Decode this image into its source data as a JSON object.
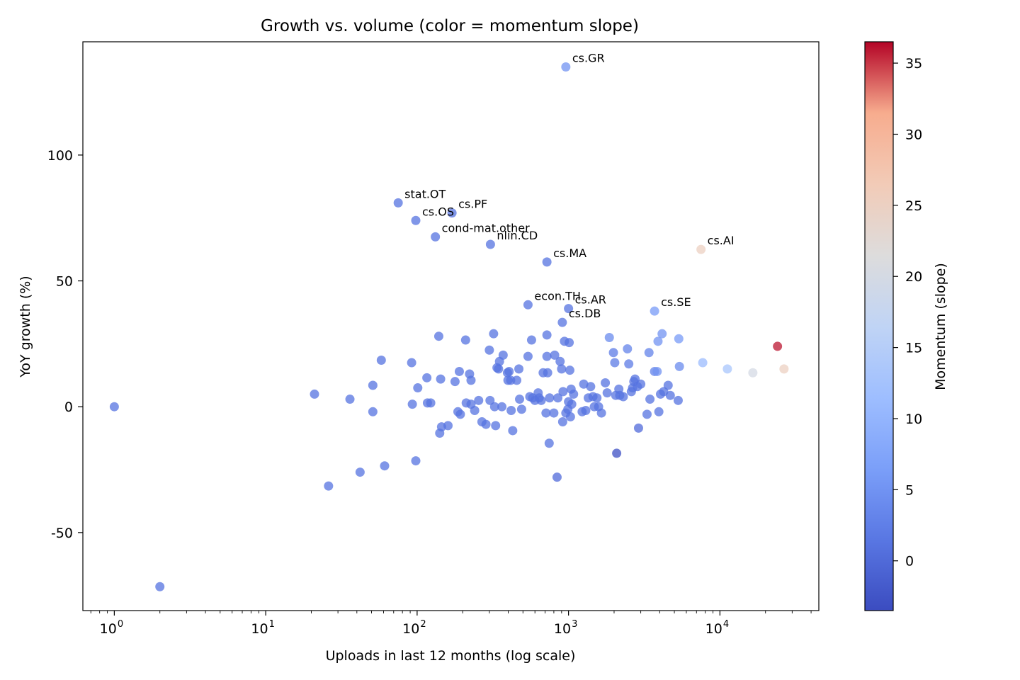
{
  "chart_data": {
    "type": "scatter",
    "title": "Growth vs. volume (color = momentum slope)",
    "xlabel": "Uploads in last 12 months (log scale)",
    "ylabel": "YoY growth (%)",
    "xscale": "log",
    "xlim": [
      0.62,
      45000
    ],
    "ylim": [
      -81,
      145
    ],
    "grid": false,
    "colormap": "coolwarm",
    "colorbar": {
      "label": "Momentum (slope)",
      "range": [
        -3.5,
        36.5
      ],
      "ticks": [
        0,
        5,
        10,
        15,
        20,
        25,
        30,
        35
      ],
      "colors": {
        "low": "#3b4cc0",
        "mid": "#dddddd",
        "high": "#b40426"
      }
    },
    "x_ticks": [
      {
        "value": 1,
        "base": "10",
        "exp": "0"
      },
      {
        "value": 10,
        "base": "10",
        "exp": "1"
      },
      {
        "value": 100,
        "base": "10",
        "exp": "2"
      },
      {
        "value": 1000,
        "base": "10",
        "exp": "3"
      },
      {
        "value": 10000,
        "base": "10",
        "exp": "4"
      }
    ],
    "y_ticks": [
      {
        "value": 100,
        "label": "100"
      },
      {
        "value": 50,
        "label": "50"
      },
      {
        "value": 0,
        "label": "0"
      },
      {
        "value": -50,
        "label": "-50"
      }
    ],
    "labeled_points": [
      {
        "label": "cs.GR",
        "x": 960,
        "y": 135,
        "c": 5
      },
      {
        "label": "stat.OT",
        "x": 75,
        "y": 81,
        "c": 1
      },
      {
        "label": "cs.OS",
        "x": 98,
        "y": 74,
        "c": 1
      },
      {
        "label": "cs.PF",
        "x": 170,
        "y": 77,
        "c": 1
      },
      {
        "label": "cond-mat.other",
        "x": 132,
        "y": 67.5,
        "c": 1
      },
      {
        "label": "nlin.CD",
        "x": 305,
        "y": 64.5,
        "c": 1
      },
      {
        "label": "cs.MA",
        "x": 720,
        "y": 57.5,
        "c": 1
      },
      {
        "label": "cs.AI",
        "x": 7500,
        "y": 62.5,
        "c": 25
      },
      {
        "label": "econ.TH",
        "x": 540,
        "y": 40.5,
        "c": 1
      },
      {
        "label": "cs.AR",
        "x": 1000,
        "y": 39,
        "c": 1
      },
      {
        "label": "cs.DB",
        "x": 910,
        "y": 33.5,
        "c": 1
      },
      {
        "label": "cs.SE",
        "x": 3700,
        "y": 38,
        "c": 6
      }
    ],
    "points": [
      {
        "x": 1,
        "y": 0,
        "c": 1
      },
      {
        "x": 2,
        "y": -71.5,
        "c": 1
      },
      {
        "x": 21,
        "y": 5,
        "c": 1
      },
      {
        "x": 26,
        "y": -31.5,
        "c": 1
      },
      {
        "x": 36,
        "y": 3,
        "c": 1
      },
      {
        "x": 42,
        "y": -26,
        "c": 1
      },
      {
        "x": 51,
        "y": 8.5,
        "c": 1
      },
      {
        "x": 51,
        "y": -2,
        "c": 1
      },
      {
        "x": 58,
        "y": 18.5,
        "c": 1
      },
      {
        "x": 61,
        "y": -23.5,
        "c": 1
      },
      {
        "x": 92,
        "y": 17.5,
        "c": 1
      },
      {
        "x": 93,
        "y": 1,
        "c": 1
      },
      {
        "x": 98,
        "y": -21.5,
        "c": 1
      },
      {
        "x": 101,
        "y": 7.5,
        "c": 1
      },
      {
        "x": 116,
        "y": 11.5,
        "c": 1
      },
      {
        "x": 117,
        "y": 1.5,
        "c": 1
      },
      {
        "x": 123,
        "y": 1.5,
        "c": 1
      },
      {
        "x": 139,
        "y": 28,
        "c": 1
      },
      {
        "x": 141,
        "y": -10.5,
        "c": 1
      },
      {
        "x": 143,
        "y": 11,
        "c": 1
      },
      {
        "x": 145,
        "y": -8,
        "c": 1
      },
      {
        "x": 160,
        "y": -7.5,
        "c": 1
      },
      {
        "x": 178,
        "y": 10,
        "c": 1
      },
      {
        "x": 186,
        "y": -2,
        "c": 1
      },
      {
        "x": 190,
        "y": 14,
        "c": 1
      },
      {
        "x": 193,
        "y": -3,
        "c": 1
      },
      {
        "x": 209,
        "y": 26.5,
        "c": 1
      },
      {
        "x": 211,
        "y": 1.5,
        "c": 1
      },
      {
        "x": 222,
        "y": 13,
        "c": 1
      },
      {
        "x": 227,
        "y": 10.5,
        "c": 1
      },
      {
        "x": 227,
        "y": 1,
        "c": 1
      },
      {
        "x": 240,
        "y": -1.5,
        "c": 1
      },
      {
        "x": 255,
        "y": 2.5,
        "c": 1
      },
      {
        "x": 268,
        "y": -6,
        "c": 1
      },
      {
        "x": 285,
        "y": -7,
        "c": 1
      },
      {
        "x": 300,
        "y": 22.5,
        "c": 1
      },
      {
        "x": 303,
        "y": 2.5,
        "c": 1
      },
      {
        "x": 320,
        "y": 29,
        "c": 1
      },
      {
        "x": 325,
        "y": 0,
        "c": 1
      },
      {
        "x": 330,
        "y": -7.5,
        "c": 1
      },
      {
        "x": 337,
        "y": 15.5,
        "c": 1
      },
      {
        "x": 345,
        "y": 15,
        "c": 1
      },
      {
        "x": 350,
        "y": 18,
        "c": 1
      },
      {
        "x": 363,
        "y": 0,
        "c": 1
      },
      {
        "x": 370,
        "y": 20.5,
        "c": 1
      },
      {
        "x": 395,
        "y": 13.5,
        "c": 1
      },
      {
        "x": 398,
        "y": 10.5,
        "c": 1
      },
      {
        "x": 405,
        "y": 14,
        "c": 1
      },
      {
        "x": 415,
        "y": 10.5,
        "c": 1
      },
      {
        "x": 418,
        "y": -1.5,
        "c": 1
      },
      {
        "x": 428,
        "y": -9.5,
        "c": 1
      },
      {
        "x": 455,
        "y": 10.5,
        "c": 1
      },
      {
        "x": 470,
        "y": 15,
        "c": 1
      },
      {
        "x": 475,
        "y": 3,
        "c": 1
      },
      {
        "x": 490,
        "y": -1,
        "c": 1
      },
      {
        "x": 540,
        "y": 20,
        "c": 1
      },
      {
        "x": 555,
        "y": 4,
        "c": 1
      },
      {
        "x": 570,
        "y": 26.5,
        "c": 1
      },
      {
        "x": 580,
        "y": 3.5,
        "c": 1
      },
      {
        "x": 600,
        "y": 2.5,
        "c": 1
      },
      {
        "x": 630,
        "y": 5.5,
        "c": 1
      },
      {
        "x": 640,
        "y": 3.5,
        "c": 1
      },
      {
        "x": 660,
        "y": 2.5,
        "c": 1
      },
      {
        "x": 680,
        "y": 13.5,
        "c": 1
      },
      {
        "x": 710,
        "y": -2.5,
        "c": 1
      },
      {
        "x": 720,
        "y": 20,
        "c": 1
      },
      {
        "x": 720,
        "y": 28.5,
        "c": 1
      },
      {
        "x": 728,
        "y": 13.5,
        "c": 1
      },
      {
        "x": 745,
        "y": -14.5,
        "c": 1
      },
      {
        "x": 750,
        "y": 3.5,
        "c": 1
      },
      {
        "x": 800,
        "y": -2.5,
        "c": 1
      },
      {
        "x": 810,
        "y": 20.5,
        "c": 1
      },
      {
        "x": 840,
        "y": -28,
        "c": 0
      },
      {
        "x": 850,
        "y": 3.5,
        "c": 1
      },
      {
        "x": 880,
        "y": 18,
        "c": 1
      },
      {
        "x": 900,
        "y": 15,
        "c": 1
      },
      {
        "x": 915,
        "y": -6,
        "c": 1
      },
      {
        "x": 920,
        "y": 6,
        "c": 1
      },
      {
        "x": 940,
        "y": 26,
        "c": 1
      },
      {
        "x": 960,
        "y": -2.5,
        "c": 1
      },
      {
        "x": 990,
        "y": -1,
        "c": 1
      },
      {
        "x": 1000,
        "y": 2,
        "c": 1
      },
      {
        "x": 1010,
        "y": 25.5,
        "c": 1
      },
      {
        "x": 1020,
        "y": 14.5,
        "c": 1
      },
      {
        "x": 1030,
        "y": -4,
        "c": 1
      },
      {
        "x": 1040,
        "y": 7,
        "c": 1
      },
      {
        "x": 1050,
        "y": 1,
        "c": 1
      },
      {
        "x": 1080,
        "y": 5,
        "c": 1
      },
      {
        "x": 1230,
        "y": -2,
        "c": 1
      },
      {
        "x": 1260,
        "y": 9,
        "c": 1
      },
      {
        "x": 1300,
        "y": -1.5,
        "c": 1
      },
      {
        "x": 1350,
        "y": 3.5,
        "c": 1
      },
      {
        "x": 1400,
        "y": 8,
        "c": 1
      },
      {
        "x": 1450,
        "y": 4,
        "c": 1
      },
      {
        "x": 1480,
        "y": 0,
        "c": 1
      },
      {
        "x": 1540,
        "y": 3.5,
        "c": 1
      },
      {
        "x": 1580,
        "y": 0,
        "c": 1
      },
      {
        "x": 1650,
        "y": -2.5,
        "c": 1
      },
      {
        "x": 1750,
        "y": 9.5,
        "c": 1
      },
      {
        "x": 1800,
        "y": 5.5,
        "c": 1
      },
      {
        "x": 1860,
        "y": 27.5,
        "c": 4
      },
      {
        "x": 1980,
        "y": 21.5,
        "c": 2
      },
      {
        "x": 2020,
        "y": 17.5,
        "c": 2
      },
      {
        "x": 2050,
        "y": 4.5,
        "c": 1
      },
      {
        "x": 2080,
        "y": -18.5,
        "c": -3
      },
      {
        "x": 2150,
        "y": 7,
        "c": 1
      },
      {
        "x": 2180,
        "y": 4.5,
        "c": 1
      },
      {
        "x": 2300,
        "y": 4,
        "c": 1
      },
      {
        "x": 2450,
        "y": 23,
        "c": 3
      },
      {
        "x": 2500,
        "y": 17,
        "c": 2
      },
      {
        "x": 2600,
        "y": 6,
        "c": 1
      },
      {
        "x": 2650,
        "y": 7.5,
        "c": 1
      },
      {
        "x": 2700,
        "y": 10,
        "c": 1
      },
      {
        "x": 2750,
        "y": 11,
        "c": 1
      },
      {
        "x": 2850,
        "y": 8,
        "c": 1
      },
      {
        "x": 2900,
        "y": -8.5,
        "c": 0
      },
      {
        "x": 3000,
        "y": 9,
        "c": 1
      },
      {
        "x": 3300,
        "y": -3,
        "c": 1
      },
      {
        "x": 3400,
        "y": 21.5,
        "c": 3
      },
      {
        "x": 3450,
        "y": 3,
        "c": 1
      },
      {
        "x": 3700,
        "y": 14,
        "c": 3
      },
      {
        "x": 3850,
        "y": 14,
        "c": 5
      },
      {
        "x": 3900,
        "y": 26,
        "c": 5
      },
      {
        "x": 3950,
        "y": -2,
        "c": 1
      },
      {
        "x": 4050,
        "y": 5,
        "c": 1
      },
      {
        "x": 4150,
        "y": 29,
        "c": 5
      },
      {
        "x": 4250,
        "y": 6,
        "c": 1
      },
      {
        "x": 4550,
        "y": 8.5,
        "c": 1
      },
      {
        "x": 4700,
        "y": 4.5,
        "c": 1
      },
      {
        "x": 5300,
        "y": 2.5,
        "c": 1
      },
      {
        "x": 5350,
        "y": 27,
        "c": 6
      },
      {
        "x": 5400,
        "y": 16,
        "c": 4
      },
      {
        "x": 7700,
        "y": 17.5,
        "c": 11
      },
      {
        "x": 11200,
        "y": 15,
        "c": 13
      },
      {
        "x": 16500,
        "y": 13.5,
        "c": 20
      },
      {
        "x": 24000,
        "y": 24,
        "c": 36
      },
      {
        "x": 26500,
        "y": 15,
        "c": 25
      }
    ]
  }
}
